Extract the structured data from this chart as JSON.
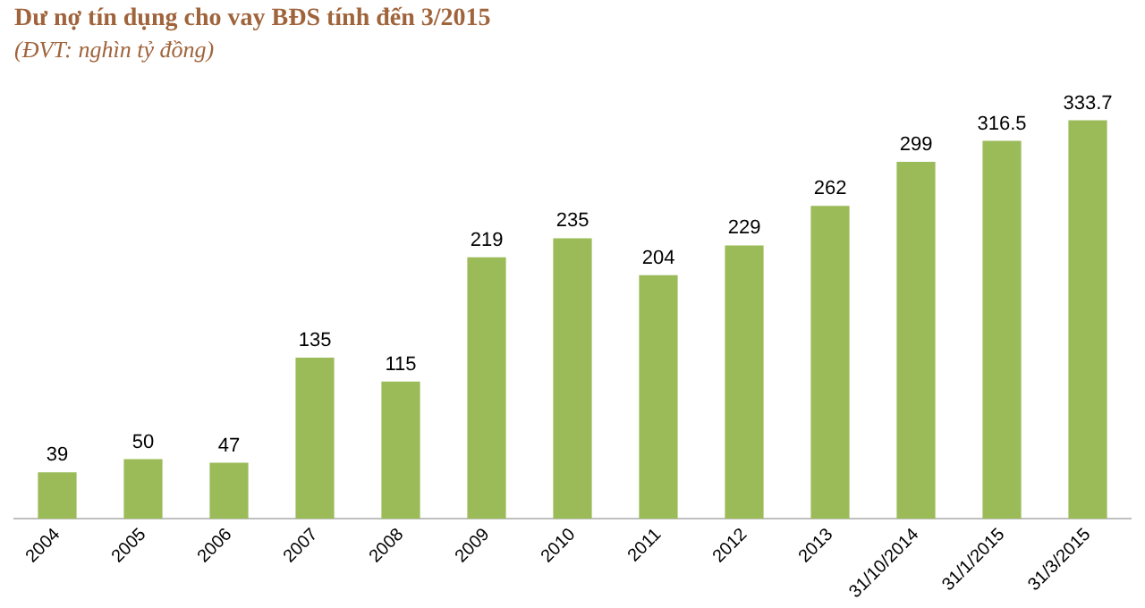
{
  "chart_data": {
    "type": "bar",
    "title": "Dư nợ tín dụng cho vay BĐS tính đến 3/2015",
    "subtitle": "(ĐVT: nghìn tỷ đồng)",
    "categories": [
      "2004",
      "2005",
      "2006",
      "2007",
      "2008",
      "2009",
      "2010",
      "2011",
      "2012",
      "2013",
      "31/10/2014",
      "31/1/2015",
      "31/3/2015"
    ],
    "values": [
      39,
      50,
      47,
      135,
      115,
      219,
      235,
      204,
      229,
      262,
      299,
      316.5,
      333.7
    ],
    "color": "#9bbb59",
    "data_labels": true,
    "grid": false,
    "legend": false
  }
}
